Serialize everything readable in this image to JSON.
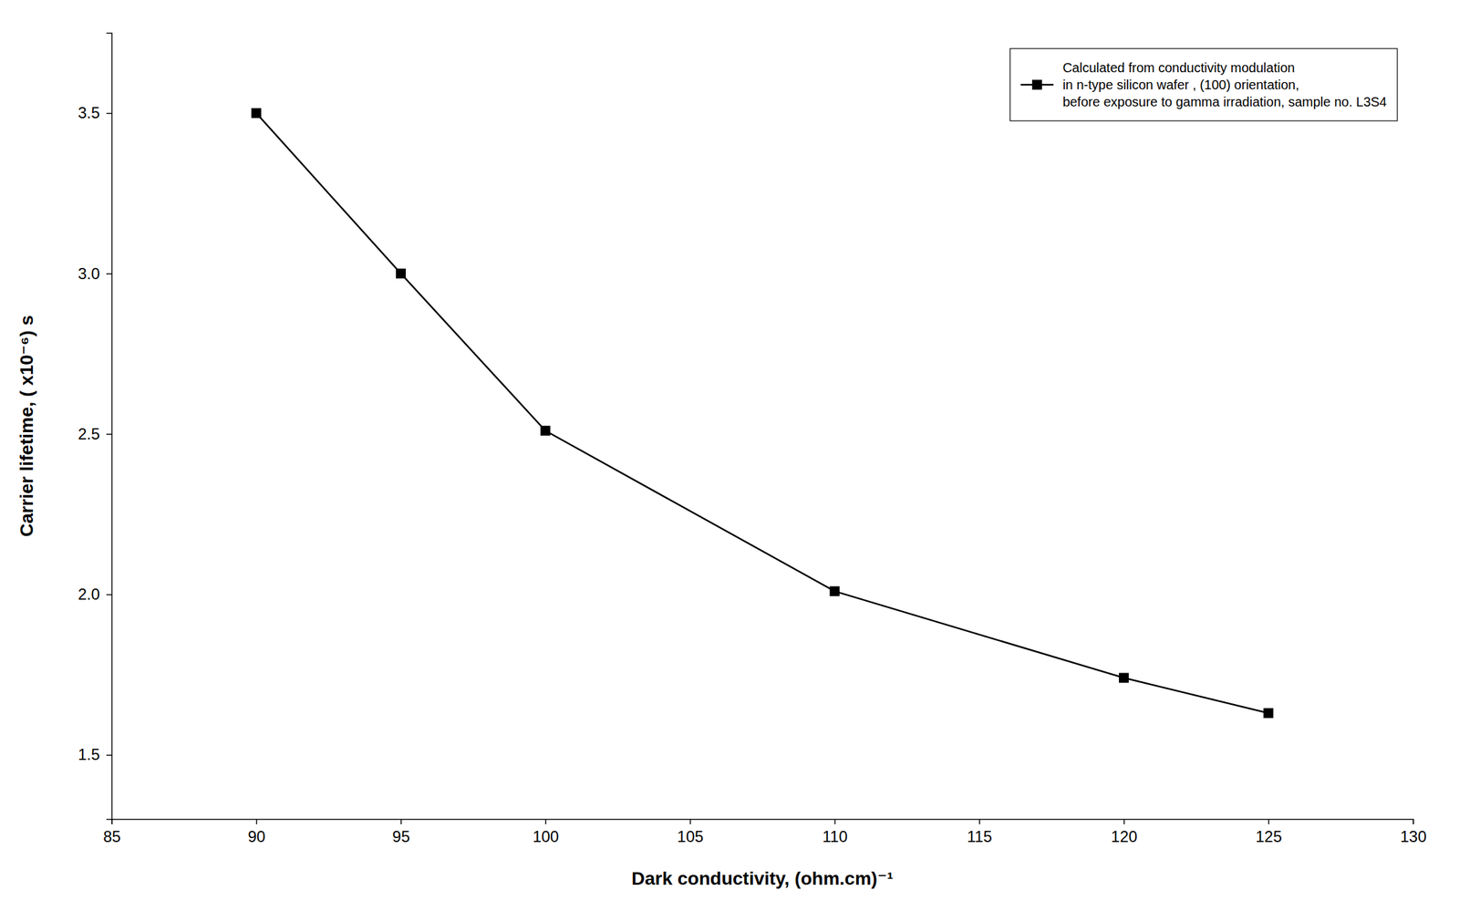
{
  "chart_data": {
    "type": "line",
    "x": [
      90,
      95,
      100,
      110,
      120,
      125
    ],
    "series": [
      {
        "name": "Calculated from conductivity modulation\nin n-type silicon wafer , (100) orientation,\nbefore exposure to gamma irradiation, sample no. L3S4",
        "color": "#000000",
        "marker": "square",
        "values": [
          3.5,
          3.0,
          2.51,
          2.01,
          1.74,
          1.63
        ]
      }
    ],
    "xlabel": "Dark conductivity, (ohm.cm)⁻¹",
    "ylabel": "Carrier lifetime, ( x10⁻⁶) s",
    "xlim": [
      85,
      130
    ],
    "ylim": [
      1.3,
      3.75
    ],
    "xticks": [
      85,
      90,
      95,
      100,
      105,
      110,
      115,
      120,
      125,
      130
    ],
    "yticks": [
      1.5,
      {
        "value": 2.0,
        "label": "2.0"
      },
      2.5,
      {
        "value": 3.0,
        "label": "3.0"
      },
      3.5
    ],
    "grid": false,
    "legend": "upper right"
  }
}
